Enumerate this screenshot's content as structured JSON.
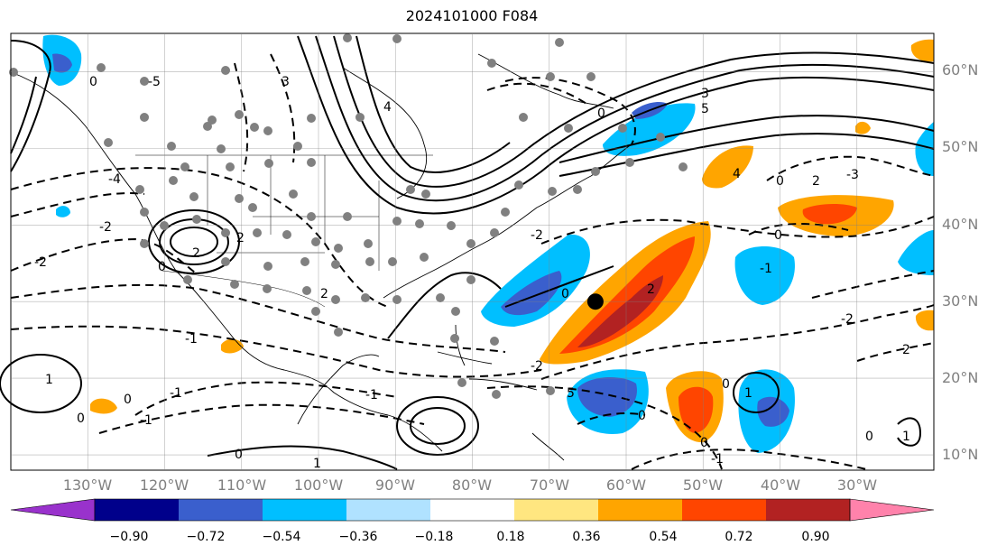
{
  "title": "2024101000 F084",
  "map": {
    "projection": "latlon",
    "lon_range": [
      -140,
      -20
    ],
    "lat_range": [
      8,
      65
    ],
    "grid": true,
    "lat_labels": [
      "10°N",
      "20°N",
      "30°N",
      "40°N",
      "50°N",
      "60°N"
    ],
    "lon_labels": [
      "130°W",
      "120°W",
      "110°W",
      "100°W",
      "90°W",
      "80°W",
      "70°W",
      "60°W",
      "50°W",
      "40°W",
      "30°W"
    ],
    "marked_point": {
      "lon": -64,
      "lat": 30
    }
  },
  "contour_labels": [
    "0",
    "1",
    "2",
    "3",
    "4",
    "5",
    "-1",
    "-2",
    "-3",
    "-4",
    "-5"
  ],
  "colorbar": {
    "orientation": "horizontal",
    "extend": "both",
    "ticks": [
      "−0.90",
      "−0.72",
      "−0.54",
      "−0.36",
      "−0.18",
      "0.18",
      "0.36",
      "0.54",
      "0.72",
      "0.90"
    ],
    "colors": [
      "#9932CC",
      "#00008B",
      "#3A5FCD",
      "#00BFFF",
      "#B0E2FF",
      "#FFFFFF",
      "#FFE680",
      "#FFA500",
      "#FF4500",
      "#B22222",
      "#FF82AB"
    ]
  },
  "colors": {
    "blue_light": "#00BFFF",
    "blue_mid": "#3A5FCD",
    "blue_dark": "#00008B",
    "orange": "#FFA500",
    "red": "#FF4500",
    "dark_red": "#B22222",
    "station": "#808080"
  }
}
